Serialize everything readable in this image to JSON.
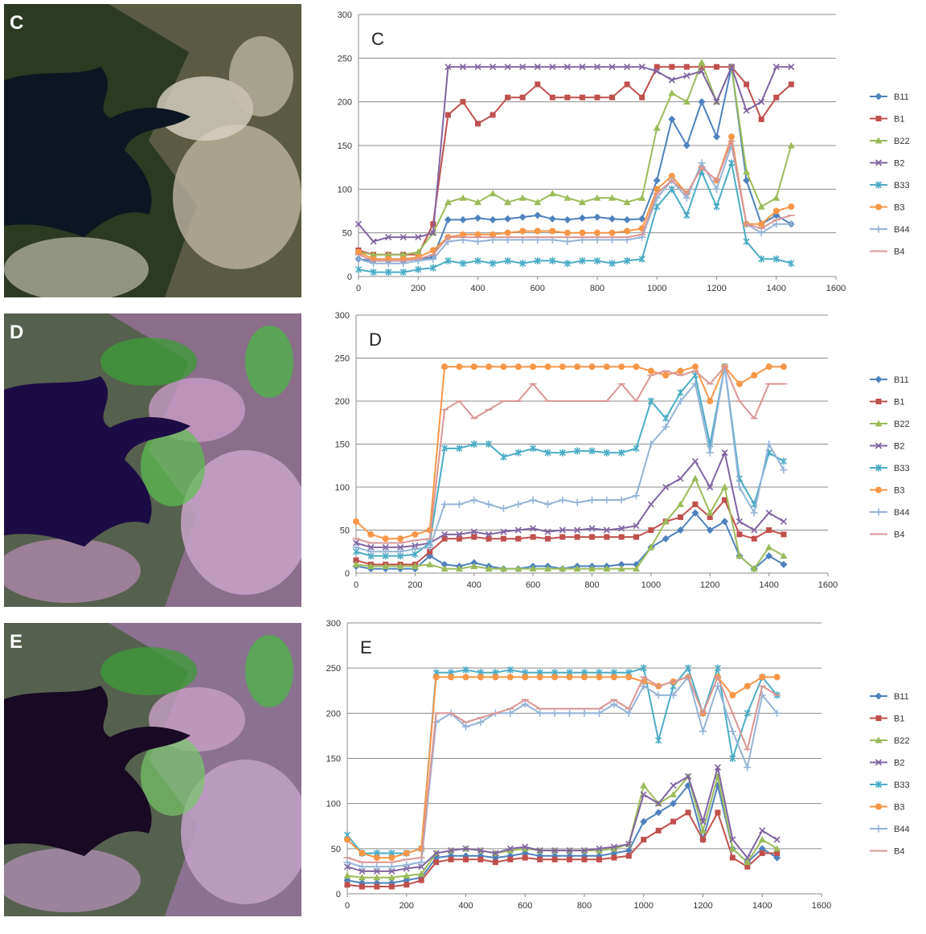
{
  "images": [
    {
      "label": "C"
    },
    {
      "label": "D"
    },
    {
      "label": "E"
    }
  ],
  "chart_data": [
    {
      "type": "line",
      "title": "C",
      "xlim": [
        0,
        1600
      ],
      "xticks": [
        0,
        200,
        400,
        600,
        800,
        1000,
        1200,
        1400,
        1600
      ],
      "ylim": [
        0,
        300
      ],
      "yticks": [
        0,
        50,
        100,
        150,
        200,
        250,
        300
      ],
      "grid": true,
      "legend": "right",
      "x": [
        0,
        50,
        100,
        150,
        200,
        250,
        300,
        350,
        400,
        450,
        500,
        550,
        600,
        650,
        700,
        750,
        800,
        850,
        900,
        950,
        1000,
        1050,
        1100,
        1150,
        1200,
        1250,
        1300,
        1350,
        1400,
        1450
      ],
      "series": [
        {
          "name": "B11",
          "color": "#4f81bd",
          "marker": "diamond",
          "values": [
            20,
            18,
            18,
            18,
            20,
            22,
            65,
            65,
            67,
            65,
            66,
            68,
            70,
            66,
            65,
            67,
            68,
            66,
            65,
            66,
            110,
            180,
            150,
            200,
            160,
            240,
            110,
            60,
            70,
            60
          ]
        },
        {
          "name": "B1",
          "color": "#c0504d",
          "marker": "square",
          "values": [
            30,
            25,
            25,
            25,
            25,
            60,
            185,
            200,
            175,
            185,
            205,
            205,
            220,
            205,
            205,
            205,
            205,
            205,
            220,
            205,
            240,
            240,
            240,
            240,
            240,
            240,
            220,
            180,
            205,
            220
          ]
        },
        {
          "name": "B22",
          "color": "#9bbb59",
          "marker": "triangle",
          "values": [
            28,
            25,
            25,
            25,
            28,
            50,
            85,
            90,
            85,
            95,
            85,
            90,
            85,
            95,
            90,
            85,
            90,
            90,
            85,
            90,
            170,
            210,
            200,
            245,
            200,
            240,
            120,
            80,
            90,
            150
          ]
        },
        {
          "name": "B2",
          "color": "#8064a2",
          "marker": "x",
          "values": [
            60,
            40,
            45,
            45,
            45,
            50,
            240,
            240,
            240,
            240,
            240,
            240,
            240,
            240,
            240,
            240,
            240,
            240,
            240,
            240,
            235,
            225,
            230,
            235,
            200,
            240,
            190,
            200,
            240,
            240
          ]
        },
        {
          "name": "B33",
          "color": "#4bacc6",
          "marker": "star",
          "values": [
            8,
            5,
            5,
            5,
            8,
            10,
            18,
            15,
            18,
            15,
            18,
            15,
            18,
            18,
            15,
            18,
            18,
            15,
            18,
            20,
            80,
            100,
            70,
            120,
            80,
            130,
            40,
            20,
            20,
            15
          ]
        },
        {
          "name": "B3",
          "color": "#f79646",
          "marker": "circle",
          "values": [
            28,
            20,
            20,
            20,
            22,
            30,
            45,
            48,
            48,
            48,
            50,
            52,
            52,
            52,
            50,
            50,
            50,
            50,
            52,
            55,
            100,
            115,
            95,
            125,
            110,
            160,
            60,
            60,
            75,
            80
          ]
        },
        {
          "name": "B44",
          "color": "#95b3d7",
          "marker": "plus",
          "values": [
            20,
            15,
            15,
            15,
            18,
            20,
            40,
            42,
            40,
            42,
            42,
            42,
            42,
            42,
            40,
            42,
            42,
            42,
            42,
            45,
            90,
            110,
            90,
            130,
            100,
            150,
            60,
            50,
            60,
            60
          ]
        },
        {
          "name": "B4",
          "color": "#d99694",
          "marker": "dash",
          "values": [
            25,
            18,
            18,
            18,
            20,
            25,
            45,
            45,
            45,
            45,
            45,
            45,
            45,
            45,
            45,
            45,
            45,
            45,
            45,
            48,
            95,
            110,
            95,
            125,
            110,
            155,
            60,
            55,
            65,
            70
          ]
        }
      ]
    },
    {
      "type": "line",
      "title": "D",
      "xlim": [
        0,
        1600
      ],
      "xticks": [
        0,
        200,
        400,
        600,
        800,
        1000,
        1200,
        1400,
        1600
      ],
      "ylim": [
        0,
        300
      ],
      "yticks": [
        0,
        50,
        100,
        150,
        200,
        250,
        300
      ],
      "grid": true,
      "legend": "right",
      "x": [
        0,
        50,
        100,
        150,
        200,
        250,
        300,
        350,
        400,
        450,
        500,
        550,
        600,
        650,
        700,
        750,
        800,
        850,
        900,
        950,
        1000,
        1050,
        1100,
        1150,
        1200,
        1250,
        1300,
        1350,
        1400,
        1450
      ],
      "series": [
        {
          "name": "B11",
          "color": "#4f81bd",
          "marker": "diamond",
          "values": [
            8,
            5,
            5,
            5,
            5,
            20,
            10,
            8,
            12,
            8,
            5,
            5,
            8,
            8,
            5,
            8,
            8,
            8,
            10,
            10,
            30,
            40,
            50,
            70,
            50,
            60,
            20,
            5,
            20,
            10
          ]
        },
        {
          "name": "B1",
          "color": "#c0504d",
          "marker": "square",
          "values": [
            15,
            10,
            10,
            10,
            10,
            25,
            40,
            40,
            42,
            40,
            40,
            40,
            42,
            40,
            42,
            42,
            42,
            42,
            42,
            42,
            50,
            60,
            65,
            80,
            65,
            85,
            45,
            40,
            50,
            45
          ]
        },
        {
          "name": "B22",
          "color": "#9bbb59",
          "marker": "triangle",
          "values": [
            10,
            8,
            8,
            8,
            8,
            10,
            5,
            5,
            8,
            5,
            5,
            5,
            5,
            5,
            5,
            5,
            5,
            5,
            5,
            5,
            30,
            60,
            80,
            110,
            70,
            100,
            20,
            5,
            30,
            20
          ]
        },
        {
          "name": "B2",
          "color": "#8064a2",
          "marker": "x",
          "values": [
            35,
            30,
            30,
            30,
            32,
            35,
            45,
            45,
            48,
            45,
            48,
            50,
            52,
            48,
            50,
            50,
            52,
            50,
            52,
            55,
            80,
            100,
            110,
            130,
            100,
            140,
            60,
            50,
            70,
            60
          ]
        },
        {
          "name": "B33",
          "color": "#4bacc6",
          "marker": "star",
          "values": [
            25,
            20,
            20,
            20,
            22,
            35,
            145,
            145,
            150,
            150,
            135,
            140,
            145,
            140,
            140,
            142,
            142,
            140,
            140,
            145,
            200,
            180,
            210,
            230,
            150,
            240,
            110,
            80,
            140,
            130
          ]
        },
        {
          "name": "B3",
          "color": "#f79646",
          "marker": "circle",
          "values": [
            60,
            45,
            40,
            40,
            45,
            50,
            240,
            240,
            240,
            240,
            240,
            240,
            240,
            240,
            240,
            240,
            240,
            240,
            240,
            240,
            235,
            230,
            235,
            240,
            200,
            240,
            220,
            230,
            240,
            240
          ]
        },
        {
          "name": "B44",
          "color": "#95b3d7",
          "marker": "plus",
          "values": [
            30,
            25,
            25,
            25,
            28,
            30,
            80,
            80,
            85,
            80,
            75,
            80,
            85,
            80,
            85,
            82,
            85,
            85,
            85,
            90,
            150,
            170,
            200,
            220,
            140,
            240,
            100,
            70,
            150,
            120
          ]
        },
        {
          "name": "B4",
          "color": "#d99694",
          "marker": "dash",
          "values": [
            40,
            35,
            35,
            35,
            38,
            40,
            190,
            200,
            180,
            190,
            200,
            200,
            220,
            200,
            200,
            200,
            200,
            200,
            220,
            200,
            230,
            235,
            230,
            235,
            220,
            240,
            200,
            180,
            220,
            220
          ]
        }
      ]
    },
    {
      "type": "line",
      "title": "E",
      "xlim": [
        0,
        1600
      ],
      "xticks": [
        0,
        200,
        400,
        600,
        800,
        1000,
        1200,
        1400,
        1600
      ],
      "ylim": [
        0,
        300
      ],
      "yticks": [
        0,
        50,
        100,
        150,
        200,
        250,
        300
      ],
      "grid": true,
      "legend": "right",
      "x": [
        0,
        50,
        100,
        150,
        200,
        250,
        300,
        350,
        400,
        450,
        500,
        550,
        600,
        650,
        700,
        750,
        800,
        850,
        900,
        950,
        1000,
        1050,
        1100,
        1150,
        1200,
        1250,
        1300,
        1350,
        1400,
        1450
      ],
      "series": [
        {
          "name": "B11",
          "color": "#4f81bd",
          "marker": "diamond",
          "values": [
            15,
            12,
            12,
            12,
            15,
            18,
            40,
            42,
            42,
            42,
            40,
            42,
            45,
            42,
            42,
            42,
            42,
            42,
            45,
            48,
            80,
            90,
            100,
            120,
            60,
            120,
            50,
            35,
            50,
            40
          ]
        },
        {
          "name": "B1",
          "color": "#c0504d",
          "marker": "square",
          "values": [
            10,
            8,
            8,
            8,
            10,
            15,
            35,
            38,
            38,
            38,
            35,
            38,
            40,
            38,
            38,
            38,
            38,
            38,
            40,
            42,
            60,
            70,
            80,
            90,
            60,
            90,
            40,
            30,
            45,
            45
          ]
        },
        {
          "name": "B22",
          "color": "#9bbb59",
          "marker": "triangle",
          "values": [
            20,
            18,
            18,
            18,
            20,
            22,
            45,
            48,
            50,
            48,
            45,
            48,
            50,
            48,
            48,
            48,
            48,
            48,
            50,
            55,
            120,
            100,
            110,
            130,
            70,
            130,
            50,
            35,
            60,
            50
          ]
        },
        {
          "name": "B2",
          "color": "#8064a2",
          "marker": "x",
          "values": [
            30,
            25,
            25,
            25,
            28,
            30,
            45,
            48,
            50,
            48,
            45,
            50,
            52,
            48,
            48,
            48,
            48,
            50,
            52,
            55,
            110,
            100,
            120,
            130,
            80,
            140,
            60,
            40,
            70,
            60
          ]
        },
        {
          "name": "B33",
          "color": "#4bacc6",
          "marker": "star",
          "values": [
            65,
            45,
            45,
            45,
            45,
            50,
            245,
            245,
            248,
            245,
            245,
            248,
            245,
            245,
            245,
            245,
            245,
            245,
            245,
            245,
            250,
            170,
            230,
            250,
            200,
            250,
            150,
            200,
            240,
            220
          ]
        },
        {
          "name": "B3",
          "color": "#f79646",
          "marker": "circle",
          "values": [
            60,
            45,
            40,
            40,
            45,
            50,
            240,
            240,
            240,
            240,
            240,
            240,
            240,
            240,
            240,
            240,
            240,
            240,
            240,
            240,
            235,
            230,
            235,
            240,
            200,
            240,
            220,
            230,
            240,
            240
          ]
        },
        {
          "name": "B44",
          "color": "#95b3d7",
          "marker": "plus",
          "values": [
            35,
            30,
            30,
            30,
            32,
            35,
            190,
            200,
            185,
            190,
            200,
            200,
            210,
            200,
            200,
            200,
            200,
            200,
            210,
            200,
            230,
            220,
            220,
            240,
            180,
            230,
            180,
            140,
            220,
            200
          ]
        },
        {
          "name": "B4",
          "color": "#d99694",
          "marker": "dash",
          "values": [
            40,
            35,
            35,
            35,
            38,
            40,
            200,
            200,
            190,
            195,
            200,
            205,
            215,
            205,
            205,
            205,
            205,
            205,
            215,
            205,
            240,
            230,
            235,
            240,
            200,
            240,
            200,
            160,
            230,
            220
          ]
        }
      ]
    }
  ]
}
